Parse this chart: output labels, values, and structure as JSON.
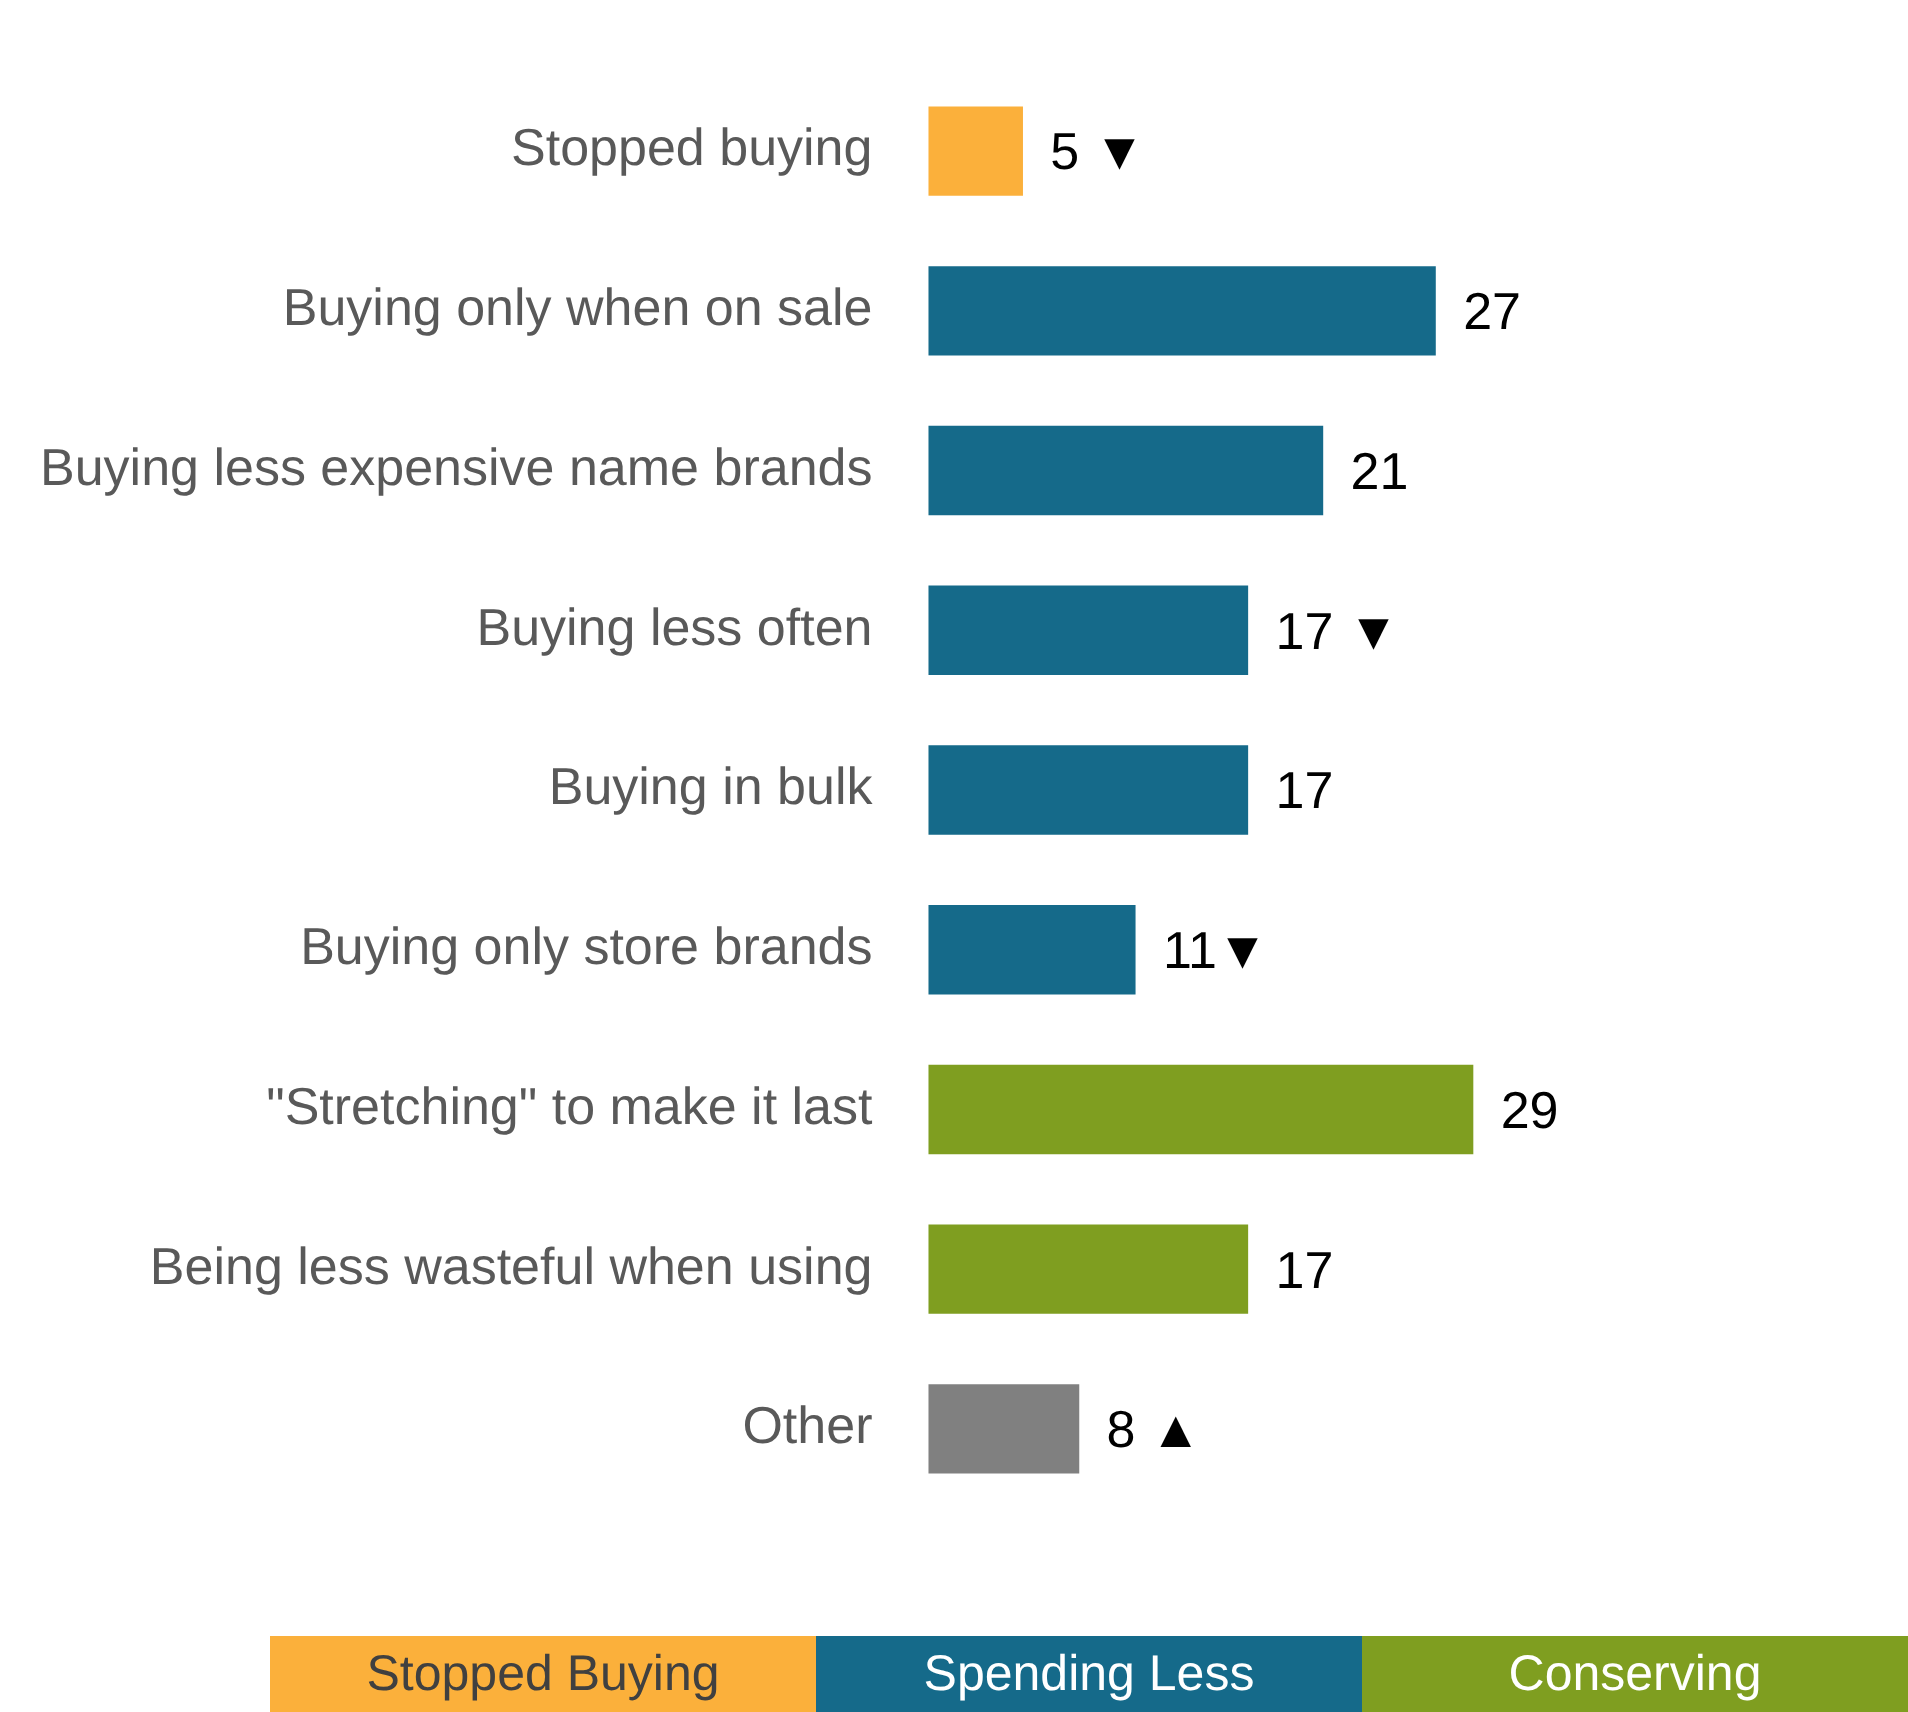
{
  "chart_data": {
    "type": "bar",
    "orientation": "horizontal",
    "categories": [
      "Stopped buying",
      "Buying only when on sale",
      "Buying less expensive name brands",
      "Buying less often",
      "Buying in bulk",
      "Buying only store brands",
      "\"Stretching\" to make it last",
      "Being less wasteful when using",
      "Other"
    ],
    "series": [
      {
        "name": "Stopped Buying",
        "color": "#fbb03b",
        "values": [
          5,
          null,
          null,
          null,
          null,
          null,
          null,
          null,
          null
        ],
        "value_labels": [
          "5 ▼",
          null,
          null,
          null,
          null,
          null,
          null,
          null,
          null
        ]
      },
      {
        "name": "Spending Less",
        "color": "#156a8a",
        "values": [
          null,
          27,
          21,
          17,
          17,
          11,
          null,
          null,
          null
        ],
        "value_labels": [
          null,
          "27",
          "21",
          "17 ▼",
          "17",
          "11▼",
          null,
          null,
          null
        ]
      },
      {
        "name": "Conserving",
        "color": "#7f9e20",
        "values": [
          null,
          null,
          null,
          null,
          null,
          null,
          29,
          17,
          null
        ],
        "value_labels": [
          null,
          null,
          null,
          null,
          null,
          null,
          "29",
          "17",
          null
        ]
      },
      {
        "color": "#808080",
        "values": [
          null,
          null,
          null,
          null,
          null,
          null,
          null,
          null,
          8
        ],
        "value_labels": [
          null,
          null,
          null,
          null,
          null,
          null,
          null,
          null,
          "8 ▲"
        ]
      }
    ],
    "tick_labels": "y",
    "legend": "bottom"
  }
}
